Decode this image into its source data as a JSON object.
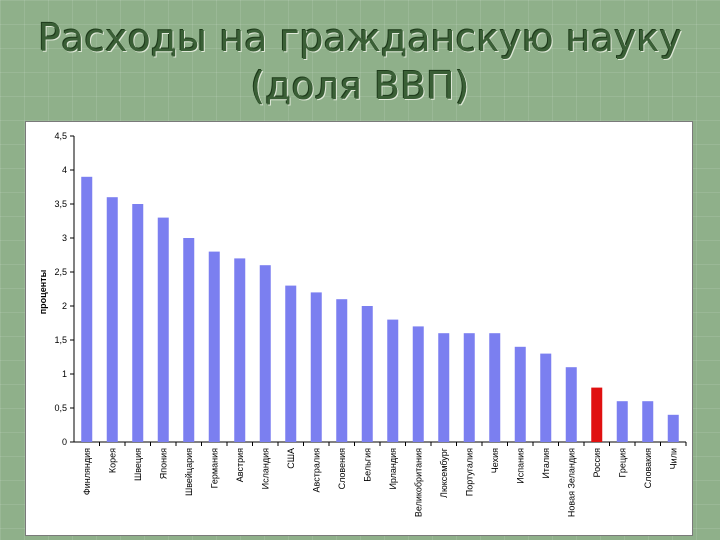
{
  "slide": {
    "title_line1": "Расходы на гражданскую науку",
    "title_line2": "(доля ВВП)"
  },
  "chart_data": {
    "type": "bar",
    "title": "Расходы на гражданскую науку (доля ВВП)",
    "ylabel": "проценты",
    "ylim": [
      0,
      4.5
    ],
    "yticks": [
      "0",
      "0,5",
      "1",
      "1,5",
      "2",
      "2,5",
      "3",
      "3,5",
      "4",
      "4,5"
    ],
    "grid": false,
    "categories": [
      "Финляндия",
      "Корея",
      "Швеция",
      "Япония",
      "Швейцария",
      "Германия",
      "Австрия",
      "Исландия",
      "США",
      "Австралия",
      "Словения",
      "Бельгия",
      "Ирландия",
      "Великобритания",
      "Люксембург",
      "Португалия",
      "Чехия",
      "Испания",
      "Италия",
      "Новая Зеландия",
      "Россия",
      "Греция",
      "Словакия",
      "Чили"
    ],
    "values": [
      3.9,
      3.6,
      3.5,
      3.3,
      3.0,
      2.8,
      2.7,
      2.6,
      2.3,
      2.2,
      2.1,
      2.0,
      1.8,
      1.7,
      1.6,
      1.6,
      1.6,
      1.4,
      1.3,
      1.1,
      0.8,
      0.6,
      0.6,
      0.4
    ],
    "colors": {
      "default_bar": "#7b7ff0",
      "highlight_bar": "#e01010",
      "highlight_category": "Россия"
    }
  }
}
